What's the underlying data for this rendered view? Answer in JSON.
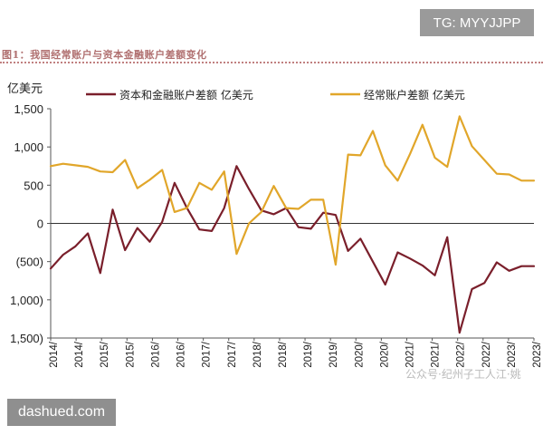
{
  "watermarks": {
    "top_right": "TG: MYYJJPP",
    "bottom_left": "dashued.com",
    "in_chart": "公众号·纪州子工人江·姚"
  },
  "figure_title": "图1：我国经常账户与资本金融账户差额变化",
  "chart_data": {
    "type": "line",
    "ylabel": "亿美元",
    "ylim": [
      -1500,
      1500
    ],
    "y_ticks": [
      1500,
      1000,
      500,
      0,
      -500,
      -1000,
      -1500
    ],
    "y_tick_labels": [
      "1,500",
      "1,000",
      "500",
      "0",
      "(500)",
      "1,000)",
      "1,500)"
    ],
    "x_tick_labels": [
      "2014/",
      "2014/",
      "2015/",
      "2015/",
      "2016/",
      "2016/",
      "2017/",
      "2017/",
      "2018/",
      "2018/",
      "2019/",
      "2019/",
      "2020/",
      "2020/",
      "2021/",
      "2021/",
      "2022/",
      "2022/",
      "2023/",
      "2023/"
    ],
    "grid": false,
    "legend_position": "top",
    "x": [
      "2014Q1",
      "2014Q2",
      "2014Q3",
      "2014Q4",
      "2015Q1",
      "2015Q2",
      "2015Q3",
      "2015Q4",
      "2016Q1",
      "2016Q2",
      "2016Q3",
      "2016Q4",
      "2017Q1",
      "2017Q2",
      "2017Q3",
      "2017Q4",
      "2018Q1",
      "2018Q2",
      "2018Q3",
      "2018Q4",
      "2019Q1",
      "2019Q2",
      "2019Q3",
      "2019Q4",
      "2020Q1",
      "2020Q2",
      "2020Q3",
      "2020Q4",
      "2021Q1",
      "2021Q2",
      "2021Q3",
      "2021Q4",
      "2022Q1",
      "2022Q2",
      "2022Q3",
      "2022Q4",
      "2023Q1",
      "2023Q2",
      "2023Q3",
      "2023Q4"
    ],
    "series": [
      {
        "name": "资本和金融账户差额 亿美元",
        "color": "#7a1f2b",
        "values": [
          -590,
          -410,
          -300,
          -130,
          -650,
          180,
          -350,
          -60,
          -240,
          20,
          530,
          200,
          -80,
          -100,
          200,
          750,
          450,
          170,
          120,
          200,
          -50,
          -70,
          140,
          110,
          -360,
          -200,
          -500,
          -800,
          -380,
          -460,
          -550,
          -680,
          -180,
          -1430,
          -860,
          -780,
          -510,
          -620,
          -560,
          -560
        ]
      },
      {
        "name": "经常账户差额 亿美元",
        "color": "#e1a62a",
        "values": [
          750,
          780,
          760,
          740,
          680,
          670,
          830,
          460,
          570,
          700,
          150,
          200,
          530,
          440,
          680,
          -400,
          0,
          150,
          490,
          200,
          190,
          310,
          310,
          -540,
          900,
          890,
          1210,
          760,
          560,
          910,
          1290,
          860,
          740,
          1400,
          1010,
          830,
          650,
          640,
          560,
          560
        ]
      }
    ]
  }
}
